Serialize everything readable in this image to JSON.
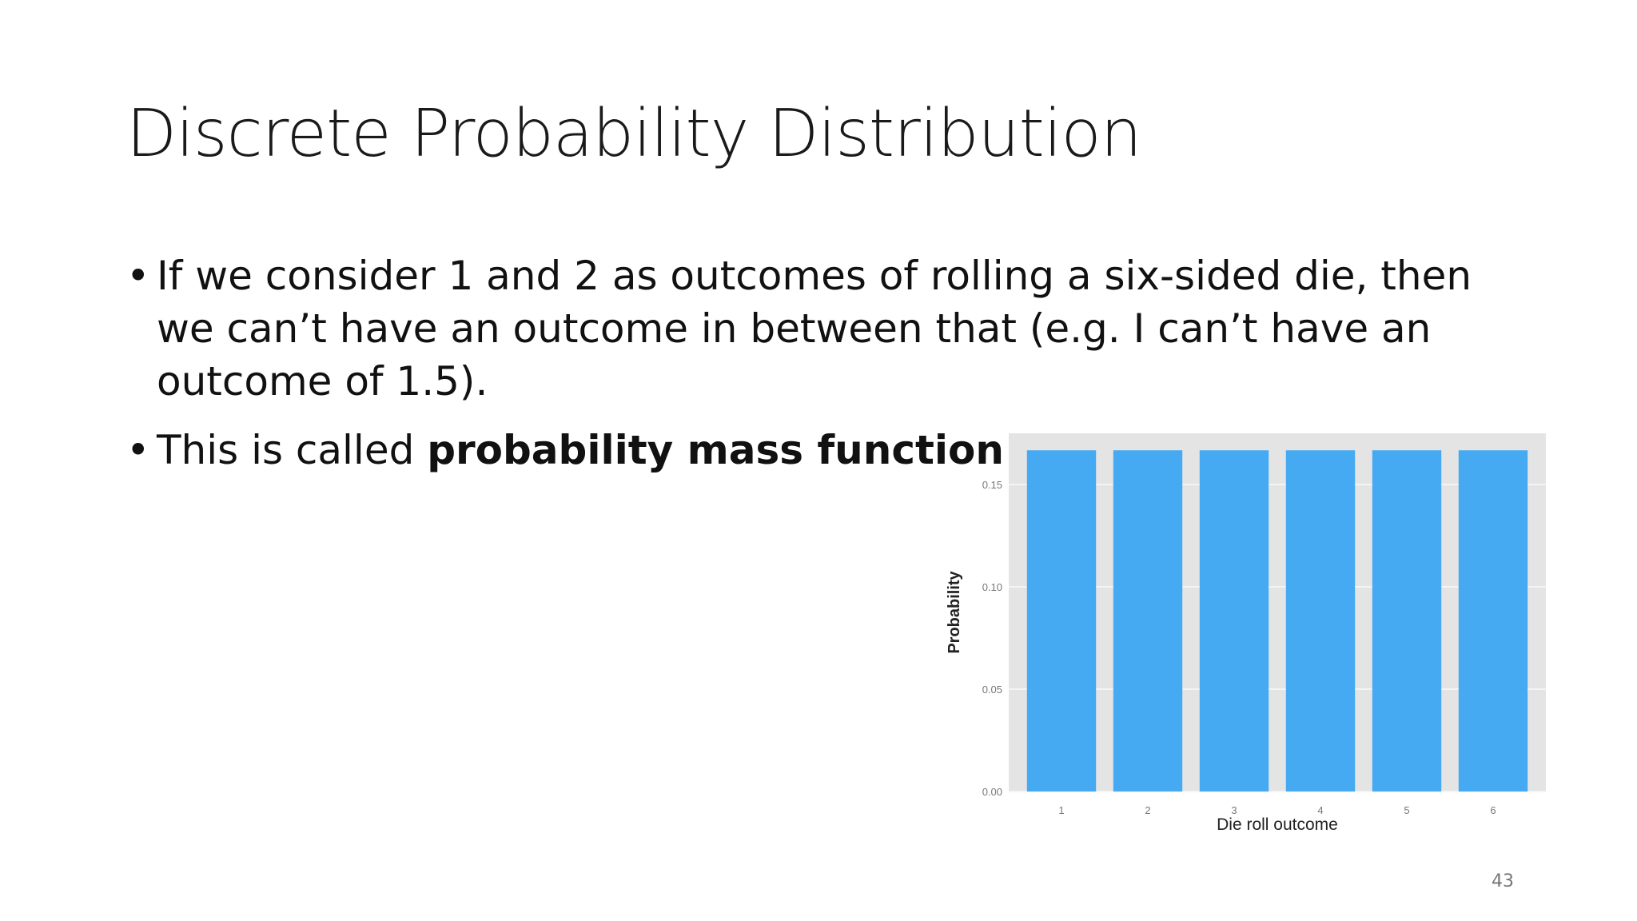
{
  "slide": {
    "title": "Discrete Probability Distribution",
    "bullets": [
      {
        "text": "If we consider 1 and 2 as outcomes of rolling a six-sided die, then we can’t have an outcome in between that (e.g. I can’t have an outcome of 1.5)."
      },
      {
        "text": "This is called ",
        "bold": "probability mass function"
      }
    ],
    "page_number": "43"
  },
  "chart_data": {
    "type": "bar",
    "categories": [
      "1",
      "2",
      "3",
      "4",
      "5",
      "6"
    ],
    "values": [
      0.1667,
      0.1667,
      0.1667,
      0.1667,
      0.1667,
      0.1667
    ],
    "xlabel": "Die roll outcome",
    "ylabel": "Probability",
    "yticks": [
      "0.00",
      "0.05",
      "0.10",
      "0.15"
    ],
    "ylim": [
      0,
      0.175
    ],
    "grid": true,
    "bar_color": "#45aaf2",
    "panel_color": "#e4e4e4"
  }
}
